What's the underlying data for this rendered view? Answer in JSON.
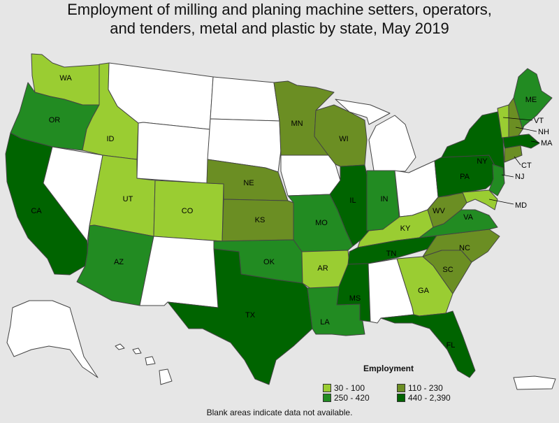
{
  "title": {
    "line1": "Employment of milling and planing machine setters, operators,",
    "line2": "and tenders, metal and plastic by state, May 2019"
  },
  "legend": {
    "title": "Employment",
    "items": [
      {
        "label": "30 - 100",
        "color": "#9acd32"
      },
      {
        "label": "110 - 230",
        "color": "#6b8e23"
      },
      {
        "label": "250 - 420",
        "color": "#228b22"
      },
      {
        "label": "440 - 2,390",
        "color": "#006400"
      }
    ]
  },
  "footnote": "Blank areas indicate data not available.",
  "colors": {
    "blank": "#ffffff",
    "background": "#e6e6e6",
    "border": "#444444",
    "c1": "#9acd32",
    "c2": "#6b8e23",
    "c3": "#228b22",
    "c4": "#006400"
  },
  "states": [
    {
      "abbr": "WA",
      "bin": "30 - 100"
    },
    {
      "abbr": "OR",
      "bin": "250 - 420"
    },
    {
      "abbr": "CA",
      "bin": "440 - 2,390"
    },
    {
      "abbr": "ID",
      "bin": "30 - 100"
    },
    {
      "abbr": "UT",
      "bin": "30 - 100"
    },
    {
      "abbr": "CO",
      "bin": "30 - 100"
    },
    {
      "abbr": "AZ",
      "bin": "250 - 420"
    },
    {
      "abbr": "NE",
      "bin": "110 - 230"
    },
    {
      "abbr": "KS",
      "bin": "110 - 230"
    },
    {
      "abbr": "OK",
      "bin": "250 - 420"
    },
    {
      "abbr": "TX",
      "bin": "440 - 2,390"
    },
    {
      "abbr": "MN",
      "bin": "110 - 230"
    },
    {
      "abbr": "MO",
      "bin": "250 - 420"
    },
    {
      "abbr": "AR",
      "bin": "30 - 100"
    },
    {
      "abbr": "LA",
      "bin": "250 - 420"
    },
    {
      "abbr": "WI",
      "bin": "110 - 230"
    },
    {
      "abbr": "IL",
      "bin": "440 - 2,390"
    },
    {
      "abbr": "IN",
      "bin": "250 - 420"
    },
    {
      "abbr": "KY",
      "bin": "30 - 100"
    },
    {
      "abbr": "TN",
      "bin": "440 - 2,390"
    },
    {
      "abbr": "MS",
      "bin": "440 - 2,390"
    },
    {
      "abbr": "GA",
      "bin": "30 - 100"
    },
    {
      "abbr": "FL",
      "bin": "440 - 2,390"
    },
    {
      "abbr": "SC",
      "bin": "110 - 230"
    },
    {
      "abbr": "NC",
      "bin": "110 - 230"
    },
    {
      "abbr": "VA",
      "bin": "250 - 420"
    },
    {
      "abbr": "WV",
      "bin": "110 - 230"
    },
    {
      "abbr": "PA",
      "bin": "440 - 2,390"
    },
    {
      "abbr": "NY",
      "bin": "440 - 2,390"
    },
    {
      "abbr": "NJ",
      "bin": "250 - 420"
    },
    {
      "abbr": "MD",
      "bin": "30 - 100"
    },
    {
      "abbr": "CT",
      "bin": "110 - 230"
    },
    {
      "abbr": "MA",
      "bin": "440 - 2,390"
    },
    {
      "abbr": "VT",
      "bin": "30 - 100"
    },
    {
      "abbr": "NH",
      "bin": "110 - 230"
    },
    {
      "abbr": "ME",
      "bin": "250 - 420"
    },
    {
      "abbr": "MI",
      "bin": null
    },
    {
      "abbr": "OH",
      "bin": null
    },
    {
      "abbr": "AL",
      "bin": null
    },
    {
      "abbr": "IA",
      "bin": null
    },
    {
      "abbr": "MT",
      "bin": null
    },
    {
      "abbr": "WY",
      "bin": null
    },
    {
      "abbr": "NV",
      "bin": null
    },
    {
      "abbr": "NM",
      "bin": null
    },
    {
      "abbr": "ND",
      "bin": null
    },
    {
      "abbr": "SD",
      "bin": null
    },
    {
      "abbr": "AK",
      "bin": null
    },
    {
      "abbr": "HI",
      "bin": null
    },
    {
      "abbr": "PR",
      "bin": null
    }
  ]
}
